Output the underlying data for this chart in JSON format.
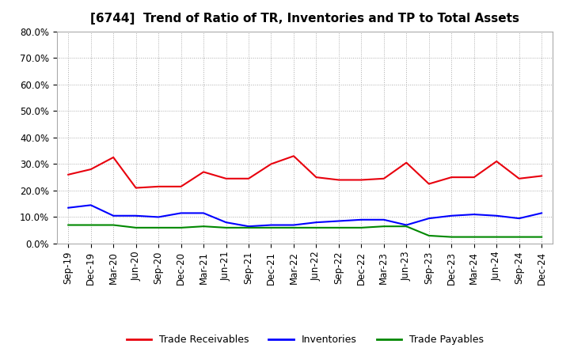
{
  "title": "[6744]  Trend of Ratio of TR, Inventories and TP to Total Assets",
  "x_labels": [
    "Sep-19",
    "Dec-19",
    "Mar-20",
    "Jun-20",
    "Sep-20",
    "Dec-20",
    "Mar-21",
    "Jun-21",
    "Sep-21",
    "Dec-21",
    "Mar-22",
    "Jun-22",
    "Sep-22",
    "Dec-22",
    "Mar-23",
    "Jun-23",
    "Sep-23",
    "Dec-23",
    "Mar-24",
    "Jun-24",
    "Sep-24",
    "Dec-24"
  ],
  "trade_receivables": [
    26.0,
    28.0,
    32.5,
    21.0,
    21.5,
    21.5,
    27.0,
    24.5,
    24.5,
    30.0,
    33.0,
    25.0,
    24.0,
    24.0,
    24.5,
    30.5,
    22.5,
    25.0,
    25.0,
    31.0,
    24.5,
    25.5
  ],
  "inventories": [
    13.5,
    14.5,
    10.5,
    10.5,
    10.0,
    11.5,
    11.5,
    8.0,
    6.5,
    7.0,
    7.0,
    8.0,
    8.5,
    9.0,
    9.0,
    7.0,
    9.5,
    10.5,
    11.0,
    10.5,
    9.5,
    11.5
  ],
  "trade_payables": [
    7.0,
    7.0,
    7.0,
    6.0,
    6.0,
    6.0,
    6.5,
    6.0,
    6.0,
    6.0,
    6.0,
    6.0,
    6.0,
    6.0,
    6.5,
    6.5,
    3.0,
    2.5,
    2.5,
    2.5,
    2.5,
    2.5
  ],
  "color_tr": "#e8000d",
  "color_inv": "#0000ff",
  "color_tp": "#008800",
  "ylim": [
    0,
    80
  ],
  "yticks": [
    0,
    10,
    20,
    30,
    40,
    50,
    60,
    70,
    80
  ],
  "legend_labels": [
    "Trade Receivables",
    "Inventories",
    "Trade Payables"
  ],
  "bg_color": "#ffffff",
  "plot_bg_color": "#ffffff",
  "title_fontsize": 11,
  "tick_fontsize": 8.5,
  "legend_fontsize": 9
}
